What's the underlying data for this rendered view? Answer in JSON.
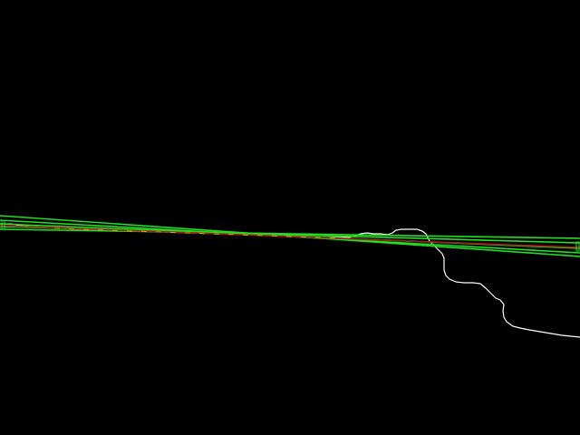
{
  "colors": {
    "background": "#000000",
    "green_line": "#22dd22",
    "red_line": "#a01818",
    "yellow_line": "#c8b400",
    "white_contour": "#ffffff"
  }
}
